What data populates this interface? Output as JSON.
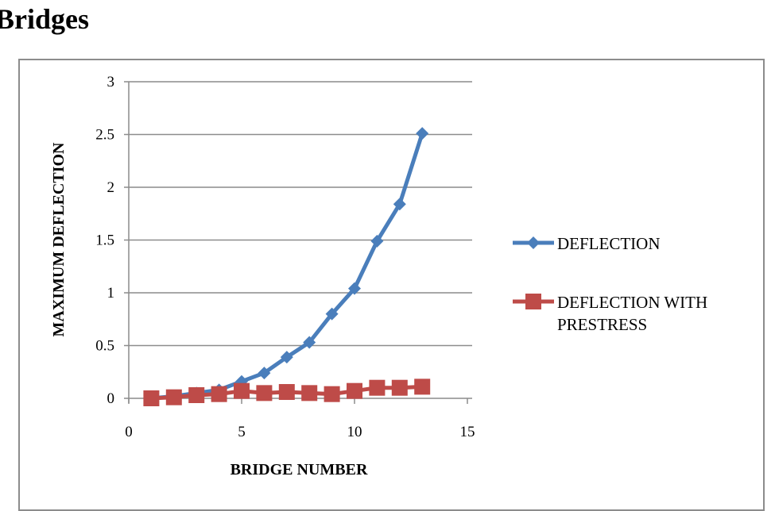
{
  "heading": "Bridges",
  "chart_data": {
    "type": "line",
    "title": "",
    "xlabel": "BRIDGE NUMBER",
    "ylabel": "MAXIMUM DEFLECTION",
    "xlim": [
      0,
      15
    ],
    "ylim": [
      0,
      3
    ],
    "x_ticks": [
      "0",
      "5",
      "10",
      "15"
    ],
    "y_ticks": [
      "0",
      "0.5",
      "1",
      "1.5",
      "2",
      "2.5",
      "3"
    ],
    "grid": "horizontal",
    "legend_position": "right",
    "x": [
      1,
      2,
      3,
      4,
      5,
      6,
      7,
      8,
      9,
      10,
      11,
      12,
      13
    ],
    "series": [
      {
        "name": "DEFLECTION",
        "color": "#4a7ebb",
        "marker": "diamond",
        "values": [
          0.0,
          0.02,
          0.05,
          0.08,
          0.16,
          0.24,
          0.39,
          0.53,
          0.8,
          1.04,
          1.49,
          1.84,
          2.51
        ]
      },
      {
        "name": "DEFLECTION WITH PRESTRESS",
        "color": "#be4b48",
        "marker": "square",
        "values": [
          0.0,
          0.01,
          0.03,
          0.04,
          0.07,
          0.05,
          0.06,
          0.05,
          0.04,
          0.07,
          0.1,
          0.1,
          0.11
        ]
      }
    ]
  },
  "legend": {
    "items": [
      {
        "lines": [
          "DEFLECTION"
        ]
      },
      {
        "lines": [
          "DEFLECTION WITH",
          "PRESTRESS"
        ]
      }
    ]
  }
}
